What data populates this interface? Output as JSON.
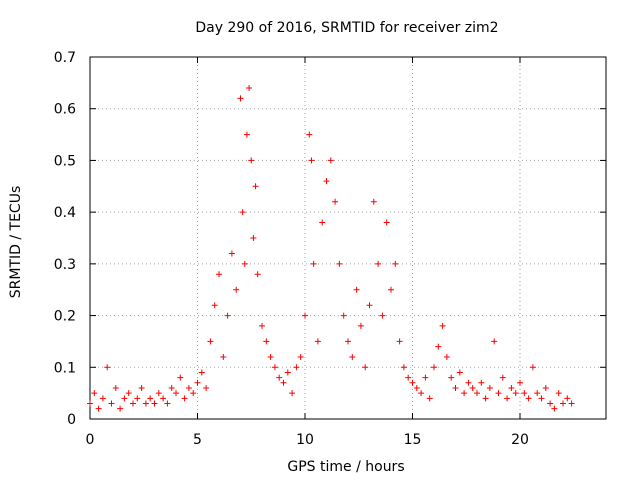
{
  "chart_data": {
    "type": "scatter",
    "title": "Day 290 of 2016, SRMTID for receiver zim2",
    "xlabel": "GPS time / hours",
    "ylabel": "SRMTID / TECUs",
    "xlim": [
      0,
      24
    ],
    "ylim": [
      0,
      0.7
    ],
    "xticks": [
      0,
      5,
      10,
      15,
      20
    ],
    "xtick_labels": [
      "0",
      "5",
      "10",
      "15",
      "20"
    ],
    "yticks": [
      0,
      0.1,
      0.2,
      0.3,
      0.4,
      0.5,
      0.6,
      0.7
    ],
    "ytick_labels": [
      "0",
      "0.1",
      "0.2",
      "0.3",
      "0.4",
      "0.5",
      "0.6",
      "0.7"
    ],
    "grid": true,
    "marker": "plus",
    "color": "#ff0000",
    "series": [
      {
        "name": "SRMTID",
        "points": [
          [
            0.0,
            0.03
          ],
          [
            0.2,
            0.05
          ],
          [
            0.4,
            0.02
          ],
          [
            0.6,
            0.04
          ],
          [
            0.8,
            0.1
          ],
          [
            1.0,
            0.03
          ],
          [
            1.2,
            0.06
          ],
          [
            1.4,
            0.02
          ],
          [
            1.6,
            0.04
          ],
          [
            1.8,
            0.05
          ],
          [
            2.0,
            0.03
          ],
          [
            2.2,
            0.04
          ],
          [
            2.4,
            0.06
          ],
          [
            2.6,
            0.03
          ],
          [
            2.8,
            0.04
          ],
          [
            3.0,
            0.03
          ],
          [
            3.2,
            0.05
          ],
          [
            3.4,
            0.04
          ],
          [
            3.6,
            0.03
          ],
          [
            3.8,
            0.06
          ],
          [
            4.0,
            0.05
          ],
          [
            4.2,
            0.08
          ],
          [
            4.4,
            0.04
          ],
          [
            4.6,
            0.06
          ],
          [
            4.8,
            0.05
          ],
          [
            5.0,
            0.07
          ],
          [
            5.2,
            0.09
          ],
          [
            5.4,
            0.06
          ],
          [
            5.6,
            0.15
          ],
          [
            5.8,
            0.22
          ],
          [
            6.0,
            0.28
          ],
          [
            6.2,
            0.12
          ],
          [
            6.4,
            0.2
          ],
          [
            6.6,
            0.32
          ],
          [
            6.8,
            0.25
          ],
          [
            7.0,
            0.62
          ],
          [
            7.1,
            0.4
          ],
          [
            7.2,
            0.3
          ],
          [
            7.3,
            0.55
          ],
          [
            7.4,
            0.64
          ],
          [
            7.5,
            0.5
          ],
          [
            7.6,
            0.35
          ],
          [
            7.7,
            0.45
          ],
          [
            7.8,
            0.28
          ],
          [
            8.0,
            0.18
          ],
          [
            8.2,
            0.15
          ],
          [
            8.4,
            0.12
          ],
          [
            8.6,
            0.1
          ],
          [
            8.8,
            0.08
          ],
          [
            9.0,
            0.07
          ],
          [
            9.2,
            0.09
          ],
          [
            9.4,
            0.05
          ],
          [
            9.6,
            0.1
          ],
          [
            9.8,
            0.12
          ],
          [
            10.0,
            0.2
          ],
          [
            10.2,
            0.55
          ],
          [
            10.3,
            0.5
          ],
          [
            10.4,
            0.3
          ],
          [
            10.6,
            0.15
          ],
          [
            10.8,
            0.38
          ],
          [
            11.0,
            0.46
          ],
          [
            11.2,
            0.5
          ],
          [
            11.4,
            0.42
          ],
          [
            11.6,
            0.3
          ],
          [
            11.8,
            0.2
          ],
          [
            12.0,
            0.15
          ],
          [
            12.2,
            0.12
          ],
          [
            12.4,
            0.25
          ],
          [
            12.6,
            0.18
          ],
          [
            12.8,
            0.1
          ],
          [
            13.0,
            0.22
          ],
          [
            13.2,
            0.42
          ],
          [
            13.4,
            0.3
          ],
          [
            13.6,
            0.2
          ],
          [
            13.8,
            0.38
          ],
          [
            14.0,
            0.25
          ],
          [
            14.2,
            0.3
          ],
          [
            14.4,
            0.15
          ],
          [
            14.6,
            0.1
          ],
          [
            14.8,
            0.08
          ],
          [
            15.0,
            0.07
          ],
          [
            15.2,
            0.06
          ],
          [
            15.4,
            0.05
          ],
          [
            15.6,
            0.08
          ],
          [
            15.8,
            0.04
          ],
          [
            16.0,
            0.1
          ],
          [
            16.2,
            0.14
          ],
          [
            16.4,
            0.18
          ],
          [
            16.6,
            0.12
          ],
          [
            16.8,
            0.08
          ],
          [
            17.0,
            0.06
          ],
          [
            17.2,
            0.09
          ],
          [
            17.4,
            0.05
          ],
          [
            17.6,
            0.07
          ],
          [
            17.8,
            0.06
          ],
          [
            18.0,
            0.05
          ],
          [
            18.2,
            0.07
          ],
          [
            18.4,
            0.04
          ],
          [
            18.6,
            0.06
          ],
          [
            18.8,
            0.15
          ],
          [
            19.0,
            0.05
          ],
          [
            19.2,
            0.08
          ],
          [
            19.4,
            0.04
          ],
          [
            19.6,
            0.06
          ],
          [
            19.8,
            0.05
          ],
          [
            20.0,
            0.07
          ],
          [
            20.2,
            0.05
          ],
          [
            20.4,
            0.04
          ],
          [
            20.6,
            0.1
          ],
          [
            20.8,
            0.05
          ],
          [
            21.0,
            0.04
          ],
          [
            21.2,
            0.06
          ],
          [
            21.4,
            0.03
          ],
          [
            21.6,
            0.02
          ],
          [
            21.8,
            0.05
          ],
          [
            22.0,
            0.03
          ],
          [
            22.2,
            0.04
          ],
          [
            22.4,
            0.03
          ]
        ]
      }
    ]
  }
}
